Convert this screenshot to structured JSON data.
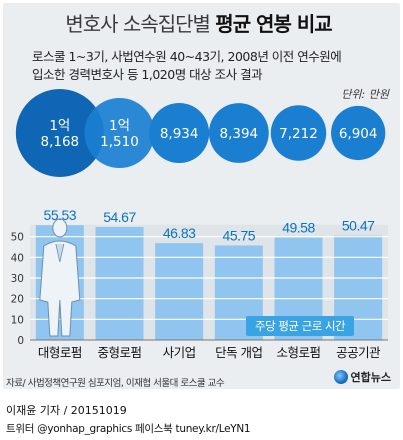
{
  "header": {
    "title_light": "변호사 소속집단별",
    "title_bold": "평균 연봉 비교",
    "subtitle_line1": "로스쿨 1~3기, 사법연수원 40~43기, 2008년 이전 연수원에",
    "subtitle_line2": "입소한 경력변호사 등 1,020명 대상 조사 결과",
    "unit_label": "단위: 만원"
  },
  "chart_data": {
    "type": "bar",
    "categories": [
      "대형로펌",
      "중형로펌",
      "사기업",
      "단독 개업",
      "소형로펌",
      "공공기관"
    ],
    "series": [
      {
        "name": "주당 평균 근로 시간",
        "values": [
          55.53,
          54.67,
          46.83,
          45.75,
          49.58,
          50.47
        ]
      }
    ],
    "value_labels": [
      "55.53",
      "54.67",
      "46.83",
      "45.75",
      "49.58",
      "50.47"
    ],
    "salary_lines": [
      [
        "1억",
        "8,168"
      ],
      [
        "1억",
        "1,510"
      ],
      [
        "8,934"
      ],
      [
        "8,394"
      ],
      [
        "7,212"
      ],
      [
        "6,904"
      ]
    ],
    "salary": [
      18168,
      11510,
      8934,
      8394,
      7212,
      6904
    ],
    "yticks": [
      0,
      10,
      20,
      30,
      40,
      50
    ],
    "ylim": [
      0,
      60
    ],
    "legend": "주당 평균 근로 시간",
    "colors": {
      "bar": "#8fc5ee",
      "bubble": "#1a7fd1",
      "bubble_dark": "#0f66b5",
      "value_text": "#0a73c4",
      "legend_bg": "#3aa3e3",
      "grid": "#ffffff"
    }
  },
  "footer": {
    "source": "자료/ 사법정책연구원 심포지엄, 이재협 서울대 로스쿨 교수",
    "logo_text": "연합뉴스",
    "author": "이재윤 기자 / 20151019",
    "social": "트위터 @yonhap_graphics  페이스북 tuney.kr/LeYN1"
  }
}
